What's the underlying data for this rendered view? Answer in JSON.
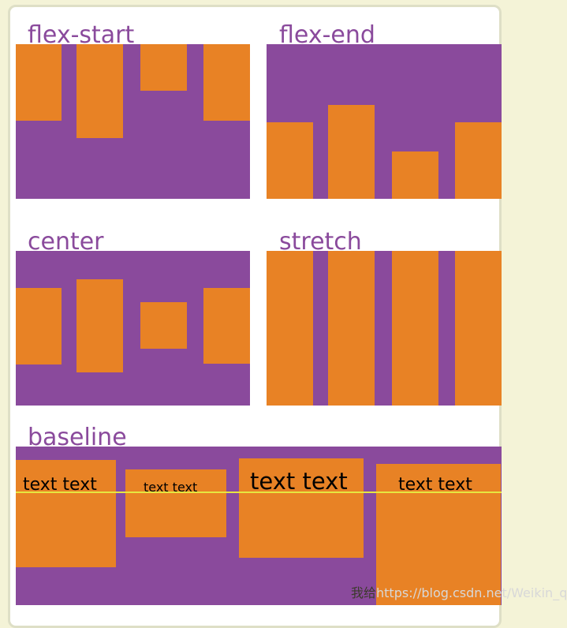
{
  "sections": {
    "flex_start": {
      "label": "flex-start"
    },
    "flex_end": {
      "label": "flex-end"
    },
    "center": {
      "label": "center"
    },
    "stretch": {
      "label": "stretch"
    },
    "baseline": {
      "label": "baseline",
      "items": [
        {
          "text": "text text"
        },
        {
          "text": "text text"
        },
        {
          "text": "text text"
        },
        {
          "text": "text text"
        }
      ]
    }
  },
  "watermark": {
    "prefix": "我给",
    "url": "https://blog.csdn.net/Weikin_qing"
  },
  "colors": {
    "background": "#f4f3d7",
    "card": "#ffffff",
    "container": "#8a4a9c",
    "item": "#e88225",
    "label": "#8a4a9c",
    "baseline_rule": "#e6e640"
  }
}
